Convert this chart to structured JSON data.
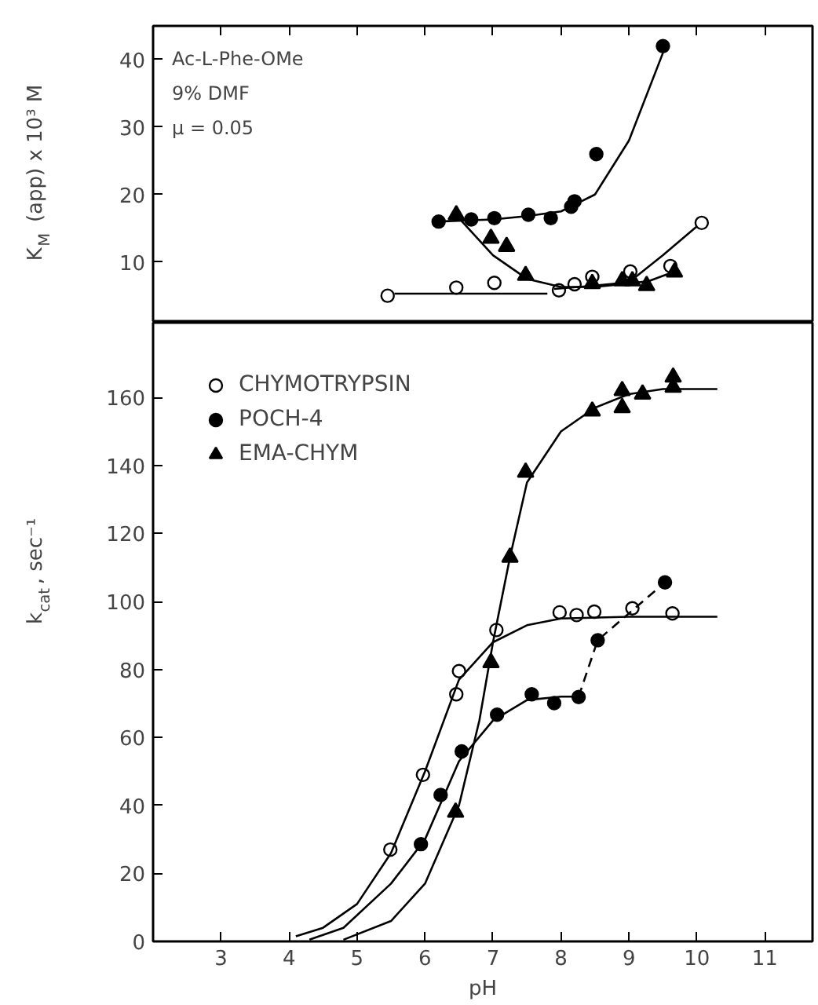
{
  "chart_data": [
    {
      "type": "scatter",
      "ylabel": "K$_{M}$ (app) x 10³ M",
      "xlim": [
        2,
        11.7
      ],
      "ylim": [
        1,
        45
      ],
      "yticks": [
        10,
        20,
        30,
        40
      ],
      "xticks": [
        {
          "value": 3,
          "label": null
        },
        {
          "value": 4,
          "label": null
        },
        {
          "value": 5,
          "label": null
        },
        {
          "value": 6,
          "label": null
        },
        {
          "value": 7,
          "label": null
        },
        {
          "value": 8,
          "label": null
        },
        {
          "value": 9,
          "label": null
        },
        {
          "value": 10,
          "label": null
        },
        {
          "value": 11,
          "label": null
        }
      ],
      "tick_labels": "y",
      "grid": false,
      "legend": false,
      "annotations": [
        "Ac-L-Phe-OMe",
        "9% DMF",
        "μ = 0.05"
      ],
      "series": [
        {
          "marker": "circle",
          "color": "#ffffff",
          "x": [
            5.45,
            6.46,
            7.02,
            7.97,
            8.2,
            8.46,
            9.02,
            9.61,
            10.07
          ],
          "values": [
            5,
            6.2,
            6.9,
            5.8,
            6.7,
            7.8,
            8.6,
            9.4,
            15.8
          ]
        },
        {
          "marker": "circle",
          "color": "#000000",
          "x": [
            6.2,
            6.68,
            7.02,
            7.52,
            7.85,
            8.15,
            8.2,
            8.52,
            9.5
          ],
          "values": [
            16,
            16.3,
            16.5,
            17,
            16.5,
            18.2,
            19,
            26,
            42
          ]
        },
        {
          "marker": "triangle",
          "color": "#000000",
          "x": [
            6.46,
            6.97,
            7.2,
            7.48,
            8.46,
            8.9,
            9.05,
            9.26,
            9.67
          ],
          "values": [
            17,
            13.5,
            12.3,
            8,
            6.8,
            7.2,
            7.2,
            6.5,
            8.5
          ]
        },
        {
          "type": "line",
          "marker": "none",
          "color": "#000000",
          "x": [
            6.2,
            7,
            7.5,
            8,
            8.5,
            9,
            9.5
          ],
          "values": [
            16,
            16.3,
            16.8,
            17.5,
            20,
            28,
            41
          ]
        },
        {
          "type": "line",
          "marker": "none",
          "color": "#000000",
          "x": [
            6.5,
            7,
            7.5,
            8,
            8.5,
            9,
            9.3,
            9.65
          ],
          "values": [
            16.5,
            11,
            7.5,
            6.3,
            6.3,
            6.8,
            7.2,
            8.5
          ]
        },
        {
          "type": "line",
          "marker": "none",
          "color": "#000000",
          "x": [
            5.55,
            7.8
          ],
          "values": [
            5.3,
            5.3
          ]
        },
        {
          "type": "line",
          "marker": "none",
          "color": "#000000",
          "x": [
            7.9,
            8.5,
            9,
            9.5,
            10
          ],
          "values": [
            6,
            6.5,
            7,
            11,
            15.3
          ]
        }
      ]
    },
    {
      "type": "scatter",
      "xlabel": "pH",
      "ylabel": "k$_{cat}$, sec⁻¹",
      "xlim": [
        2,
        11.7
      ],
      "ylim": [
        0,
        182
      ],
      "xticks": [
        3,
        4,
        5,
        6,
        7,
        8,
        9,
        10,
        11
      ],
      "yticks": [
        0,
        20,
        40,
        60,
        80,
        100,
        120,
        140,
        160
      ],
      "grid": false,
      "legend": "top left",
      "series": [
        {
          "name": "CHYMOTRYPSIN",
          "marker": "circle",
          "color": "#ffffff",
          "x": [
            5.49,
            5.97,
            6.46,
            6.5,
            7.05,
            7.98,
            8.23,
            8.49,
            9.05,
            9.64
          ],
          "values": [
            27,
            49,
            72.7,
            79.5,
            91.6,
            96.8,
            96,
            97,
            98,
            96.5
          ]
        },
        {
          "name": "POCH-4",
          "marker": "circle",
          "color": "#000000",
          "x": [
            5.94,
            6.23,
            6.54,
            7.06,
            7.57,
            7.9,
            8.26,
            8.54,
            9.53
          ],
          "values": [
            28.6,
            43.1,
            55.9,
            66.7,
            72.7,
            70.1,
            71.9,
            88.6,
            105.6
          ]
        },
        {
          "name": "EMA-CHYM",
          "marker": "triangle",
          "color": "#000000",
          "x": [
            6.45,
            6.97,
            7.25,
            7.48,
            8.46,
            8.9,
            8.9,
            9.2,
            9.65,
            9.65
          ],
          "values": [
            38,
            82,
            113,
            138,
            156,
            157,
            162,
            161,
            163,
            166
          ]
        },
        {
          "type": "line",
          "marker": "none",
          "color": "#000000",
          "x": [
            4.1,
            4.5,
            5,
            5.5,
            6,
            6.5,
            7,
            7.5,
            8,
            9,
            10.3
          ],
          "values": [
            1.5,
            4,
            11,
            26,
            50,
            77,
            88,
            93,
            95,
            95.5,
            95.5
          ]
        },
        {
          "type": "line",
          "marker": "none",
          "color": "#000000",
          "x": [
            4.3,
            4.8,
            5.5,
            6,
            6.5,
            7,
            7.5,
            8,
            8.26
          ],
          "values": [
            0.5,
            4,
            17,
            30,
            53,
            65,
            71,
            72,
            72
          ]
        },
        {
          "type": "line",
          "marker": "none",
          "line_style": "dashed",
          "color": "#000000",
          "x": [
            8.26,
            8.54,
            9.53
          ],
          "values": [
            72,
            88.6,
            105.6
          ]
        },
        {
          "type": "line",
          "marker": "none",
          "color": "#000000",
          "x": [
            4.8,
            5.5,
            6,
            6.5,
            6.8,
            7,
            7.25,
            7.5,
            8,
            8.5,
            9,
            9.5,
            10.3
          ],
          "values": [
            0.5,
            6,
            17,
            40,
            65,
            88,
            113,
            135,
            150,
            157,
            161,
            162.5,
            162.5
          ]
        }
      ]
    }
  ]
}
